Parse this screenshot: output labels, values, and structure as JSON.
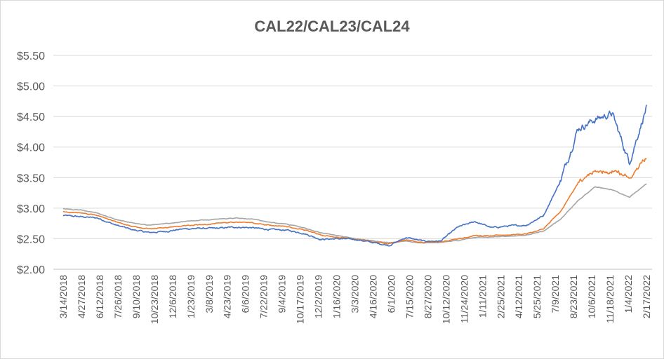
{
  "chart_data": {
    "type": "line",
    "title": "CAL22/CAL23/CAL24",
    "xlabel": "",
    "ylabel": "",
    "ylim": [
      2.0,
      5.5
    ],
    "y_ticks": [
      "$2.00",
      "$2.50",
      "$3.00",
      "$3.50",
      "$4.00",
      "$4.50",
      "$5.00",
      "$5.50"
    ],
    "y_tick_values": [
      2.0,
      2.5,
      3.0,
      3.5,
      4.0,
      4.5,
      5.0,
      5.5
    ],
    "x_ticks": [
      "3/14/2018",
      "4/27/2018",
      "6/12/2018",
      "7/26/2018",
      "9/10/2018",
      "10/23/2018",
      "12/6/2018",
      "1/23/2019",
      "3/8/2019",
      "4/23/2019",
      "6/6/2019",
      "7/22/2019",
      "9/4/2019",
      "10/17/2019",
      "12/2/2019",
      "1/16/2020",
      "3/3/2020",
      "4/16/2020",
      "6/1/2020",
      "7/15/2020",
      "8/27/2020",
      "10/12/2020",
      "11/24/2020",
      "1/11/2021",
      "2/25/2021",
      "4/12/2021",
      "5/25/2021",
      "7/9/2021",
      "8/23/2021",
      "10/6/2021",
      "11/18/2021",
      "1/4/2022",
      "2/17/2022"
    ],
    "grid": true,
    "legend": "none",
    "series": [
      {
        "color": "#4472c4",
        "values": [
          2.88,
          2.86,
          2.84,
          2.73,
          2.65,
          2.6,
          2.62,
          2.66,
          2.67,
          2.67,
          2.69,
          2.68,
          2.65,
          2.64,
          2.59,
          2.49,
          2.5,
          2.49,
          2.44,
          2.39,
          2.52,
          2.46,
          2.46,
          2.69,
          2.78,
          2.68,
          2.71,
          2.72,
          2.88,
          3.45,
          4.3,
          4.45,
          4.55,
          3.75,
          4.65
        ]
      },
      {
        "color": "#ed7d31",
        "values": [
          2.94,
          2.92,
          2.88,
          2.78,
          2.7,
          2.66,
          2.68,
          2.71,
          2.73,
          2.75,
          2.77,
          2.76,
          2.72,
          2.7,
          2.65,
          2.56,
          2.52,
          2.49,
          2.46,
          2.42,
          2.48,
          2.44,
          2.45,
          2.49,
          2.55,
          2.55,
          2.56,
          2.58,
          2.66,
          2.95,
          3.4,
          3.6,
          3.62,
          3.5,
          3.85
        ]
      },
      {
        "color": "#a5a5a5",
        "values": [
          2.99,
          2.97,
          2.92,
          2.82,
          2.76,
          2.72,
          2.75,
          2.78,
          2.8,
          2.82,
          2.84,
          2.82,
          2.77,
          2.74,
          2.68,
          2.6,
          2.55,
          2.5,
          2.47,
          2.43,
          2.46,
          2.43,
          2.44,
          2.47,
          2.52,
          2.53,
          2.54,
          2.56,
          2.62,
          2.82,
          3.12,
          3.35,
          3.3,
          3.18,
          3.4
        ]
      }
    ]
  }
}
